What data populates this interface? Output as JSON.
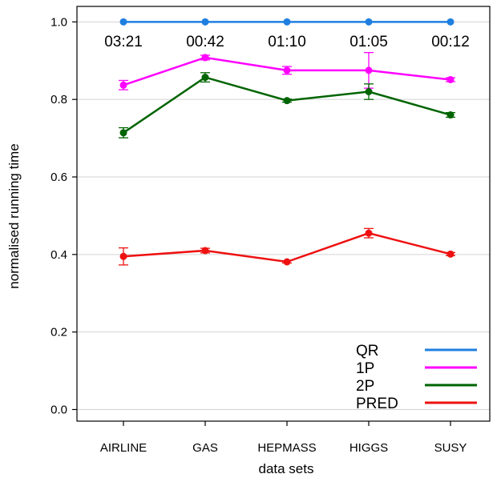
{
  "chart_data": {
    "type": "line",
    "xlabel": "data sets",
    "ylabel": "normalised running time",
    "categories": [
      "AIRLINE",
      "GAS",
      "HEPMASS",
      "HIGGS",
      "SUSY"
    ],
    "ylim": [
      -0.03,
      1.04
    ],
    "yticks": [
      "0.0",
      "0.2",
      "0.4",
      "0.6",
      "0.8",
      "1.0"
    ],
    "grid": true,
    "legend_position": "bottom-right",
    "annotations": [
      "03:21",
      "00:42",
      "01:10",
      "01:05",
      "00:12"
    ],
    "series": [
      {
        "name": "QR",
        "color": "#1f7fe0",
        "values": [
          1.0,
          1.0,
          1.0,
          1.0,
          1.0
        ],
        "errors": [
          0,
          0,
          0,
          0,
          0
        ]
      },
      {
        "name": "1P",
        "color": "#ff00ff",
        "values": [
          0.837,
          0.908,
          0.875,
          0.875,
          0.851
        ],
        "errors": [
          0.012,
          0.006,
          0.01,
          0.046,
          0.005
        ]
      },
      {
        "name": "2P",
        "color": "#006400",
        "values": [
          0.714,
          0.857,
          0.797,
          0.82,
          0.76
        ],
        "errors": [
          0.013,
          0.012,
          0.004,
          0.02,
          0.006
        ]
      },
      {
        "name": "PRED",
        "color": "#ee1111",
        "values": [
          0.395,
          0.41,
          0.381,
          0.455,
          0.401
        ],
        "errors": [
          0.022,
          0.006,
          0.003,
          0.012,
          0.004
        ]
      }
    ]
  }
}
